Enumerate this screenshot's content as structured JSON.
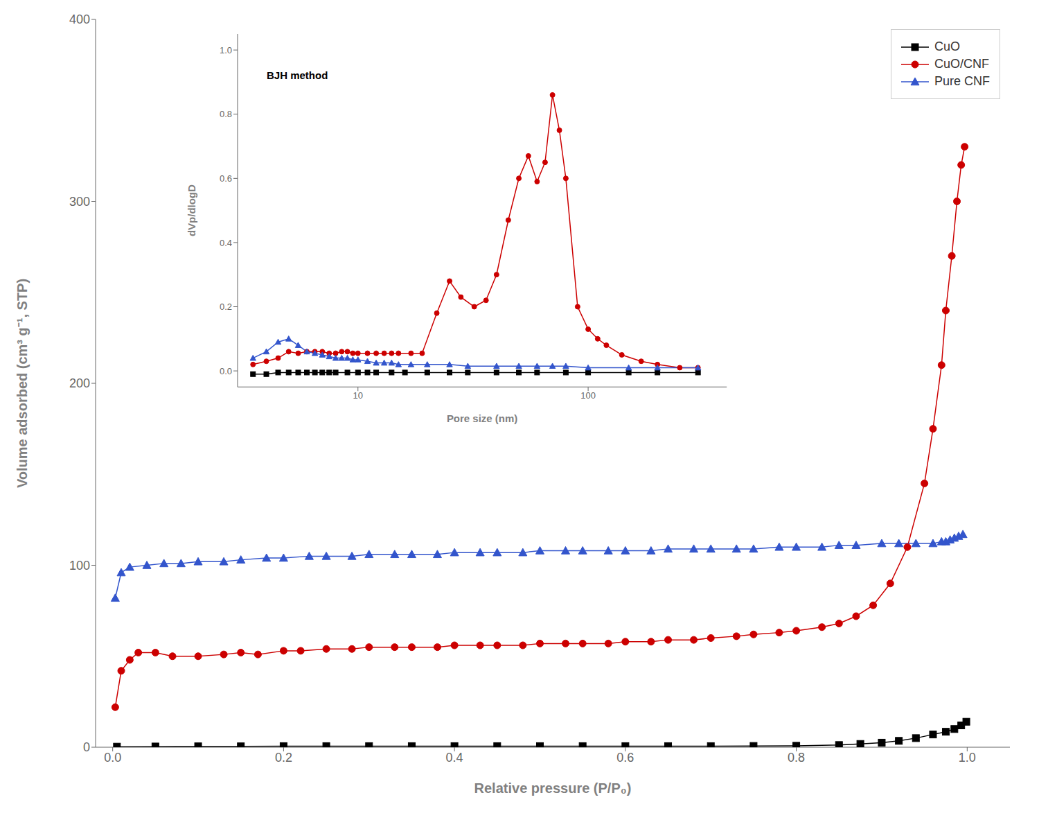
{
  "chart_data": [
    {
      "type": "line",
      "xlabel": "Relative pressure (P/P₀)",
      "ylabel": "Volume adsorbed (cm³ g⁻¹, STP)",
      "xlim": [
        -0.02,
        1.05
      ],
      "xticks": [
        {
          "value": 0,
          "label": "0.0"
        },
        0.2,
        0.4,
        0.6,
        0.8,
        {
          "value": 1,
          "label": "1.0"
        }
      ],
      "ylim": [
        0,
        400
      ],
      "yticks": [
        0,
        100,
        200,
        300,
        400
      ],
      "grid": false,
      "legend": "upper right",
      "series": [
        {
          "name": "CuO",
          "color": "#000000",
          "marker": "square",
          "x": [
            0.005,
            0.05,
            0.1,
            0.15,
            0.2,
            0.25,
            0.3,
            0.35,
            0.4,
            0.45,
            0.5,
            0.55,
            0.6,
            0.65,
            0.7,
            0.75,
            0.8,
            0.85,
            0.875,
            0.9,
            0.92,
            0.94,
            0.96,
            0.975,
            0.985,
            0.993,
            0.999
          ],
          "values": [
            0.3,
            0.4,
            0.5,
            0.5,
            0.6,
            0.6,
            0.6,
            0.6,
            0.6,
            0.6,
            0.6,
            0.6,
            0.6,
            0.6,
            0.6,
            0.7,
            0.8,
            1.2,
            1.8,
            2.5,
            3.5,
            5.0,
            7.0,
            8.5,
            10.0,
            12.0,
            14.0
          ]
        },
        {
          "name": "CuO/CNF",
          "color": "#cc0000",
          "marker": "circle",
          "x": [
            0.003,
            0.01,
            0.02,
            0.03,
            0.05,
            0.07,
            0.1,
            0.13,
            0.15,
            0.17,
            0.2,
            0.22,
            0.25,
            0.28,
            0.3,
            0.33,
            0.35,
            0.38,
            0.4,
            0.43,
            0.45,
            0.48,
            0.5,
            0.53,
            0.55,
            0.58,
            0.6,
            0.63,
            0.65,
            0.68,
            0.7,
            0.73,
            0.75,
            0.78,
            0.8,
            0.83,
            0.85,
            0.87,
            0.89,
            0.91,
            0.93,
            0.95,
            0.96,
            0.97,
            0.975,
            0.982,
            0.988,
            0.993,
            0.997
          ],
          "values": [
            22,
            42,
            48,
            52,
            52,
            50,
            50,
            51,
            52,
            51,
            53,
            53,
            54,
            54,
            55,
            55,
            55,
            55,
            56,
            56,
            56,
            56,
            57,
            57,
            57,
            57,
            58,
            58,
            59,
            59,
            60,
            61,
            62,
            63,
            64,
            66,
            68,
            72,
            78,
            90,
            110,
            145,
            175,
            210,
            240,
            270,
            300,
            320,
            330
          ]
        },
        {
          "name": "Pure CNF",
          "color": "#3355cc",
          "marker": "triangle",
          "x": [
            0.003,
            0.01,
            0.02,
            0.04,
            0.06,
            0.08,
            0.1,
            0.13,
            0.15,
            0.18,
            0.2,
            0.23,
            0.25,
            0.28,
            0.3,
            0.33,
            0.35,
            0.38,
            0.4,
            0.43,
            0.45,
            0.48,
            0.5,
            0.53,
            0.55,
            0.58,
            0.6,
            0.63,
            0.65,
            0.68,
            0.7,
            0.73,
            0.75,
            0.78,
            0.8,
            0.83,
            0.85,
            0.87,
            0.9,
            0.92,
            0.94,
            0.96,
            0.97,
            0.975,
            0.98,
            0.985,
            0.99,
            0.995
          ],
          "values": [
            82,
            96,
            99,
            100,
            101,
            101,
            102,
            102,
            103,
            104,
            104,
            105,
            105,
            105,
            106,
            106,
            106,
            106,
            107,
            107,
            107,
            107,
            108,
            108,
            108,
            108,
            108,
            108,
            109,
            109,
            109,
            109,
            109,
            110,
            110,
            110,
            111,
            111,
            112,
            112,
            112,
            112,
            113,
            113,
            114,
            115,
            116,
            117
          ]
        }
      ]
    },
    {
      "type": "line",
      "xlabel": "Pore size (nm)",
      "ylabel": "dVp/dlogD",
      "annotation": "BJH method",
      "log": "x",
      "xlim": [
        3,
        400
      ],
      "xticks": [
        10,
        100
      ],
      "ylim": [
        -0.05,
        1.05
      ],
      "yticks": [
        {
          "value": 0,
          "label": "0.0"
        },
        0.2,
        0.4,
        0.6,
        0.8,
        {
          "value": 1,
          "label": "1.0"
        }
      ],
      "grid": false,
      "series": [
        {
          "color": "#000000",
          "marker": "square",
          "x": [
            3.5,
            4.0,
            4.5,
            5.0,
            5.5,
            6.0,
            6.5,
            7.0,
            7.5,
            8.0,
            9.0,
            10.0,
            11.0,
            12.0,
            14.0,
            16.0,
            20.0,
            25.0,
            30.0,
            40.0,
            50.0,
            60.0,
            80.0,
            100.0,
            150.0,
            200.0,
            300.0
          ],
          "values": [
            -0.01,
            -0.01,
            -0.005,
            -0.005,
            -0.005,
            -0.005,
            -0.005,
            -0.005,
            -0.005,
            -0.005,
            -0.005,
            -0.005,
            -0.005,
            -0.005,
            -0.005,
            -0.005,
            -0.005,
            -0.005,
            -0.005,
            -0.005,
            -0.005,
            -0.005,
            -0.005,
            -0.005,
            -0.005,
            -0.005,
            -0.005
          ]
        },
        {
          "color": "#cc0000",
          "marker": "circle",
          "x": [
            3.5,
            4.0,
            4.5,
            5.0,
            5.5,
            6.0,
            6.5,
            7.0,
            7.5,
            8.0,
            8.5,
            9.0,
            9.5,
            10.0,
            11.0,
            12.0,
            13.0,
            14.0,
            15.0,
            17.0,
            19.0,
            22.0,
            25.0,
            28.0,
            32.0,
            36.0,
            40.0,
            45.0,
            50.0,
            55.0,
            60.0,
            65.0,
            70.0,
            75.0,
            80.0,
            90.0,
            100.0,
            110.0,
            120.0,
            140.0,
            170.0,
            200.0,
            250.0,
            300.0
          ],
          "values": [
            0.02,
            0.03,
            0.04,
            0.06,
            0.055,
            0.06,
            0.06,
            0.06,
            0.055,
            0.055,
            0.06,
            0.06,
            0.055,
            0.055,
            0.055,
            0.055,
            0.055,
            0.055,
            0.055,
            0.055,
            0.055,
            0.18,
            0.28,
            0.23,
            0.2,
            0.22,
            0.3,
            0.47,
            0.6,
            0.67,
            0.59,
            0.65,
            0.86,
            0.75,
            0.6,
            0.2,
            0.13,
            0.1,
            0.08,
            0.05,
            0.03,
            0.02,
            0.01,
            0.01
          ]
        },
        {
          "color": "#3355cc",
          "marker": "triangle",
          "x": [
            3.5,
            4.0,
            4.5,
            5.0,
            5.5,
            6.0,
            6.5,
            7.0,
            7.5,
            8.0,
            8.5,
            9.0,
            9.5,
            10.0,
            11.0,
            12.0,
            13.0,
            14.0,
            15.0,
            17.0,
            20.0,
            25.0,
            30.0,
            40.0,
            50.0,
            60.0,
            70.0,
            80.0,
            100.0,
            150.0,
            200.0,
            300.0
          ],
          "values": [
            0.04,
            0.06,
            0.09,
            0.1,
            0.08,
            0.06,
            0.055,
            0.05,
            0.045,
            0.04,
            0.04,
            0.04,
            0.035,
            0.035,
            0.03,
            0.025,
            0.025,
            0.025,
            0.02,
            0.02,
            0.02,
            0.02,
            0.015,
            0.015,
            0.015,
            0.015,
            0.015,
            0.015,
            0.01,
            0.01,
            0.01,
            0.01
          ]
        }
      ]
    }
  ]
}
